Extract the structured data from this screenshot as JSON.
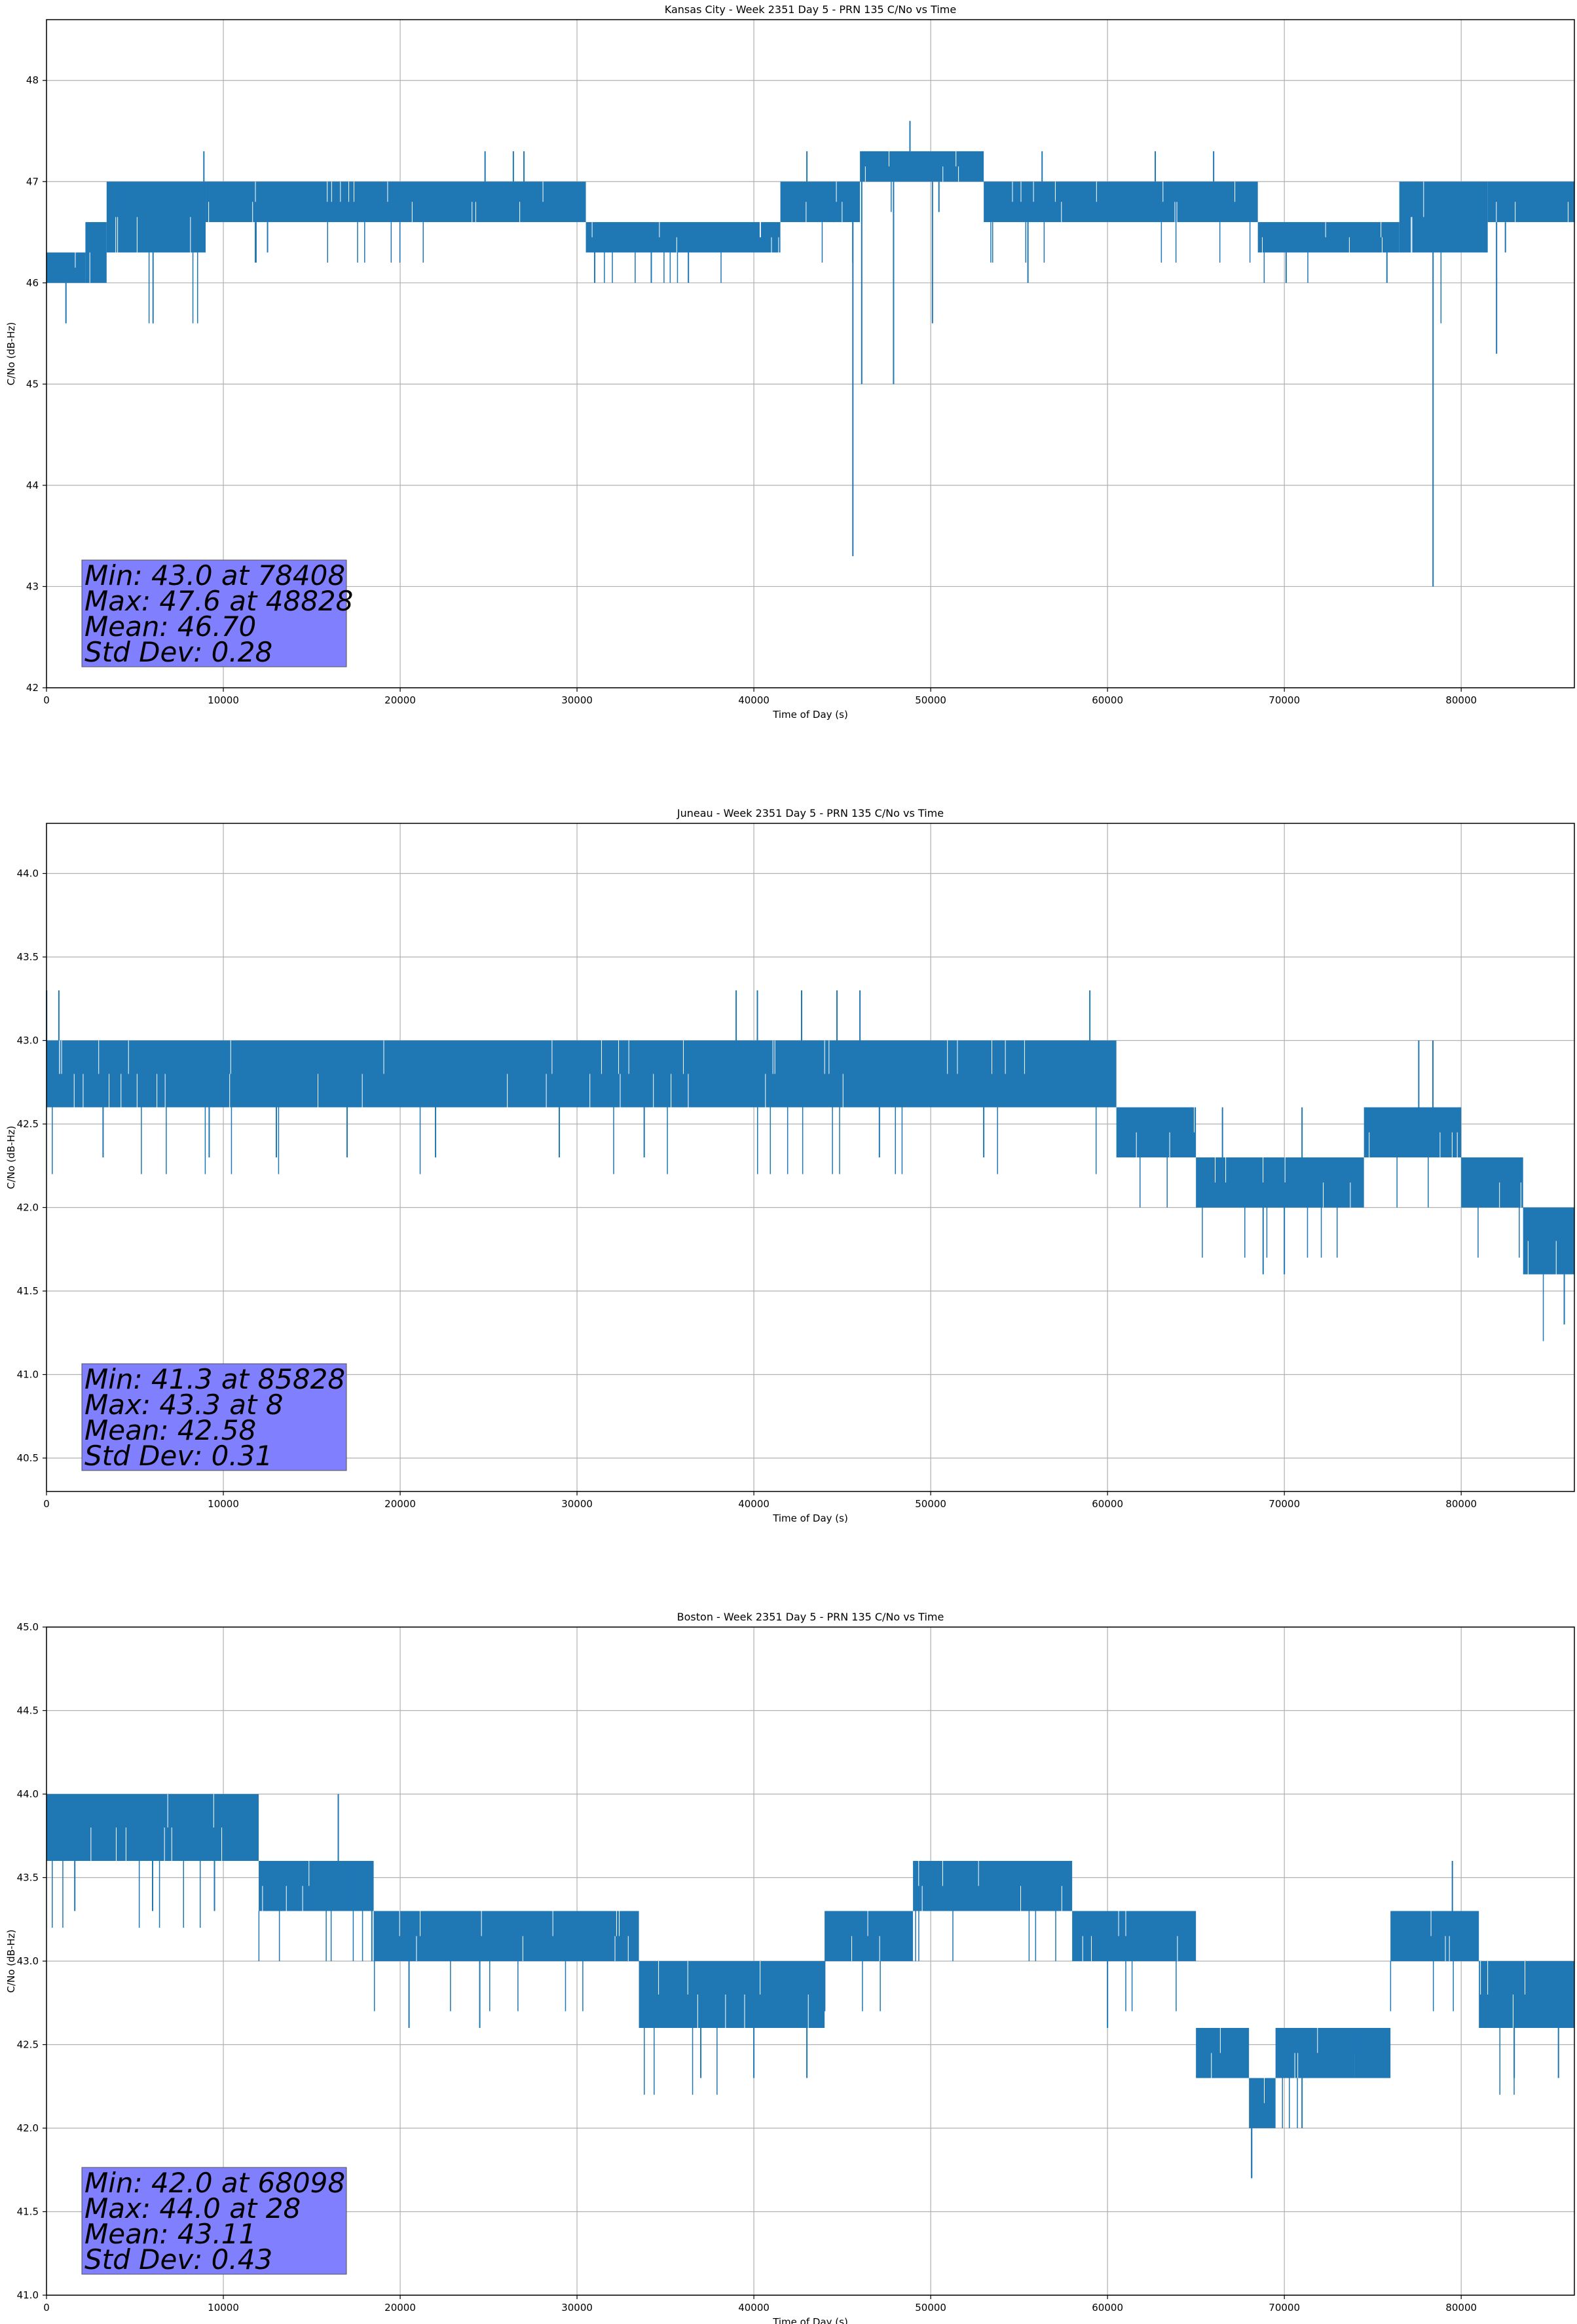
{
  "figure": {
    "charts": [
      {
        "title": "Kansas City - Week 2351 Day 5 - PRN 135 C/No vs Time",
        "stats": [
          "Min: 43.0 at 78408",
          "Max: 47.6 at 48828",
          "Mean: 46.70",
          "Std Dev: 0.28"
        ]
      },
      {
        "title": "Juneau - Week 2351 Day 5 - PRN 135 C/No vs Time",
        "stats": [
          "Min: 41.3 at 85828",
          "Max: 43.3 at 8",
          "Mean: 42.58",
          "Std Dev: 0.31"
        ]
      },
      {
        "title": "Boston - Week 2351 Day 5 - PRN 135 C/No vs Time",
        "stats": [
          "Min: 42.0 at 68098",
          "Max: 44.0 at 28",
          "Mean: 43.11",
          "Std Dev: 0.43"
        ]
      }
    ]
  },
  "colors": {
    "series": "#1f77b4",
    "stats_box": "#8080ff",
    "grid": "#b0b0b0"
  },
  "chart_data": [
    {
      "type": "line",
      "title": "Kansas City - Week 2351 Day 5 - PRN 135 C/No vs Time",
      "xlabel": "Time of Day (s)",
      "ylabel": "C/No (dB-Hz)",
      "xlim": [
        0,
        86400
      ],
      "ylim": [
        42,
        48.6
      ],
      "xticks": [
        0,
        10000,
        20000,
        30000,
        40000,
        50000,
        60000,
        70000,
        80000
      ],
      "yticks": [
        42,
        43,
        44,
        45,
        46,
        47,
        48
      ],
      "ytick_decimals": 0,
      "grid": true,
      "series": [
        {
          "name": "C/No",
          "bands": [
            [
              0,
              2200,
              46.0,
              46.3
            ],
            [
              2200,
              3400,
              46.0,
              46.6
            ],
            [
              3400,
              9000,
              46.3,
              47.0
            ],
            [
              9000,
              30500,
              46.6,
              47.0
            ],
            [
              30500,
              41500,
              46.3,
              46.6
            ],
            [
              41500,
              46000,
              46.6,
              47.0
            ],
            [
              46000,
              53000,
              47.0,
              47.3
            ],
            [
              53000,
              68500,
              46.6,
              47.0
            ],
            [
              68500,
              76500,
              46.3,
              46.6
            ],
            [
              76500,
              81500,
              46.3,
              47.0
            ],
            [
              81500,
              86400,
              46.6,
              47.0
            ]
          ],
          "spikes": [
            [
              1100,
              45.6
            ],
            [
              4200,
              46.6
            ],
            [
              8900,
              47.3
            ],
            [
              12500,
              46.3
            ],
            [
              24800,
              47.3
            ],
            [
              26400,
              47.3
            ],
            [
              27000,
              47.3
            ],
            [
              31000,
              46.0
            ],
            [
              34200,
              46.0
            ],
            [
              36300,
              46.0
            ],
            [
              43000,
              47.3
            ],
            [
              44500,
              46.6
            ],
            [
              45600,
              43.3
            ],
            [
              46100,
              45.0
            ],
            [
              47900,
              45.0
            ],
            [
              48828,
              47.6
            ],
            [
              50100,
              45.6
            ],
            [
              55500,
              46.0
            ],
            [
              56300,
              47.3
            ],
            [
              62700,
              47.3
            ],
            [
              66000,
              47.3
            ],
            [
              70100,
              46.0
            ],
            [
              75800,
              46.0
            ],
            [
              78408,
              43.0
            ],
            [
              82000,
              45.3
            ],
            [
              82500,
              46.3
            ]
          ]
        }
      ],
      "stats": [
        "Min: 43.0 at 78408",
        "Max: 47.6 at 48828",
        "Mean: 46.70",
        "Std Dev: 0.28"
      ]
    },
    {
      "type": "line",
      "title": "Juneau - Week 2351 Day 5 - PRN 135 C/No vs Time",
      "xlabel": "Time of Day (s)",
      "ylabel": "C/No (dB-Hz)",
      "xlim": [
        0,
        86400
      ],
      "ylim": [
        40.3,
        44.3
      ],
      "xticks": [
        0,
        10000,
        20000,
        30000,
        40000,
        50000,
        60000,
        70000,
        80000
      ],
      "yticks": [
        40.5,
        41.0,
        41.5,
        42.0,
        42.5,
        43.0,
        43.5,
        44.0
      ],
      "ytick_decimals": 1,
      "grid": true,
      "series": [
        {
          "name": "C/No",
          "bands": [
            [
              0,
              60500,
              42.6,
              43.0
            ],
            [
              60500,
              65000,
              42.3,
              42.6
            ],
            [
              65000,
              74500,
              42.0,
              42.3
            ],
            [
              74500,
              80000,
              42.3,
              42.6
            ],
            [
              80000,
              83500,
              42.0,
              42.3
            ],
            [
              83500,
              86400,
              41.6,
              42.0
            ]
          ],
          "spikes": [
            [
              8,
              43.3
            ],
            [
              700,
              43.3
            ],
            [
              3200,
              42.3
            ],
            [
              9200,
              42.3
            ],
            [
              13000,
              42.3
            ],
            [
              17000,
              42.3
            ],
            [
              22000,
              42.3
            ],
            [
              29000,
              42.3
            ],
            [
              33800,
              42.3
            ],
            [
              39000,
              43.3
            ],
            [
              40200,
              43.3
            ],
            [
              42700,
              43.3
            ],
            [
              44700,
              43.3
            ],
            [
              46000,
              43.3
            ],
            [
              47100,
              42.3
            ],
            [
              53000,
              42.3
            ],
            [
              59000,
              43.3
            ],
            [
              66500,
              42.6
            ],
            [
              68800,
              41.6
            ],
            [
              70000,
              41.6
            ],
            [
              71000,
              42.6
            ],
            [
              76500,
              42.6
            ],
            [
              77600,
              43.0
            ],
            [
              78400,
              43.0
            ],
            [
              85828,
              41.3
            ]
          ]
        }
      ],
      "stats": [
        "Min: 41.3 at 85828",
        "Max: 43.3 at 8",
        "Mean: 42.58",
        "Std Dev: 0.31"
      ]
    },
    {
      "type": "line",
      "title": "Boston - Week 2351 Day 5 - PRN 135 C/No vs Time",
      "xlabel": "Time of Day (s)",
      "ylabel": "C/No (dB-Hz)",
      "xlim": [
        0,
        86400
      ],
      "ylim": [
        41.0,
        45.0
      ],
      "xticks": [
        0,
        10000,
        20000,
        30000,
        40000,
        50000,
        60000,
        70000,
        80000
      ],
      "yticks": [
        41.0,
        41.5,
        42.0,
        42.5,
        43.0,
        43.5,
        44.0,
        44.5,
        45.0
      ],
      "ytick_decimals": 1,
      "grid": true,
      "series": [
        {
          "name": "C/No",
          "bands": [
            [
              0,
              12000,
              43.6,
              44.0
            ],
            [
              12000,
              18500,
              43.3,
              43.6
            ],
            [
              18500,
              33500,
              43.0,
              43.3
            ],
            [
              33500,
              44000,
              42.6,
              43.0
            ],
            [
              44000,
              49000,
              43.0,
              43.3
            ],
            [
              49000,
              58000,
              43.3,
              43.6
            ],
            [
              58000,
              65000,
              43.0,
              43.3
            ],
            [
              65000,
              68000,
              42.3,
              42.6
            ],
            [
              68000,
              69500,
              42.0,
              42.3
            ],
            [
              69500,
              76000,
              42.3,
              42.6
            ],
            [
              76000,
              81000,
              43.0,
              43.3
            ],
            [
              81000,
              86400,
              42.6,
              43.0
            ]
          ],
          "spikes": [
            [
              28,
              44.0
            ],
            [
              1600,
              43.3
            ],
            [
              6000,
              43.3
            ],
            [
              9500,
              43.3
            ],
            [
              15000,
              43.3
            ],
            [
              16500,
              44.0
            ],
            [
              17000,
              43.3
            ],
            [
              18400,
              43.0
            ],
            [
              20500,
              42.6
            ],
            [
              24500,
              42.6
            ],
            [
              37000,
              42.3
            ],
            [
              40000,
              42.3
            ],
            [
              43000,
              42.3
            ],
            [
              52500,
              43.6
            ],
            [
              60000,
              42.6
            ],
            [
              68098,
              42.0
            ],
            [
              71000,
              42.0
            ],
            [
              74000,
              42.3
            ],
            [
              79500,
              43.6
            ],
            [
              83000,
              42.3
            ],
            [
              85500,
              42.3
            ]
          ]
        }
      ],
      "stats": [
        "Min: 42.0 at 68098",
        "Max: 44.0 at 28",
        "Mean: 43.11",
        "Std Dev: 0.43"
      ]
    }
  ]
}
